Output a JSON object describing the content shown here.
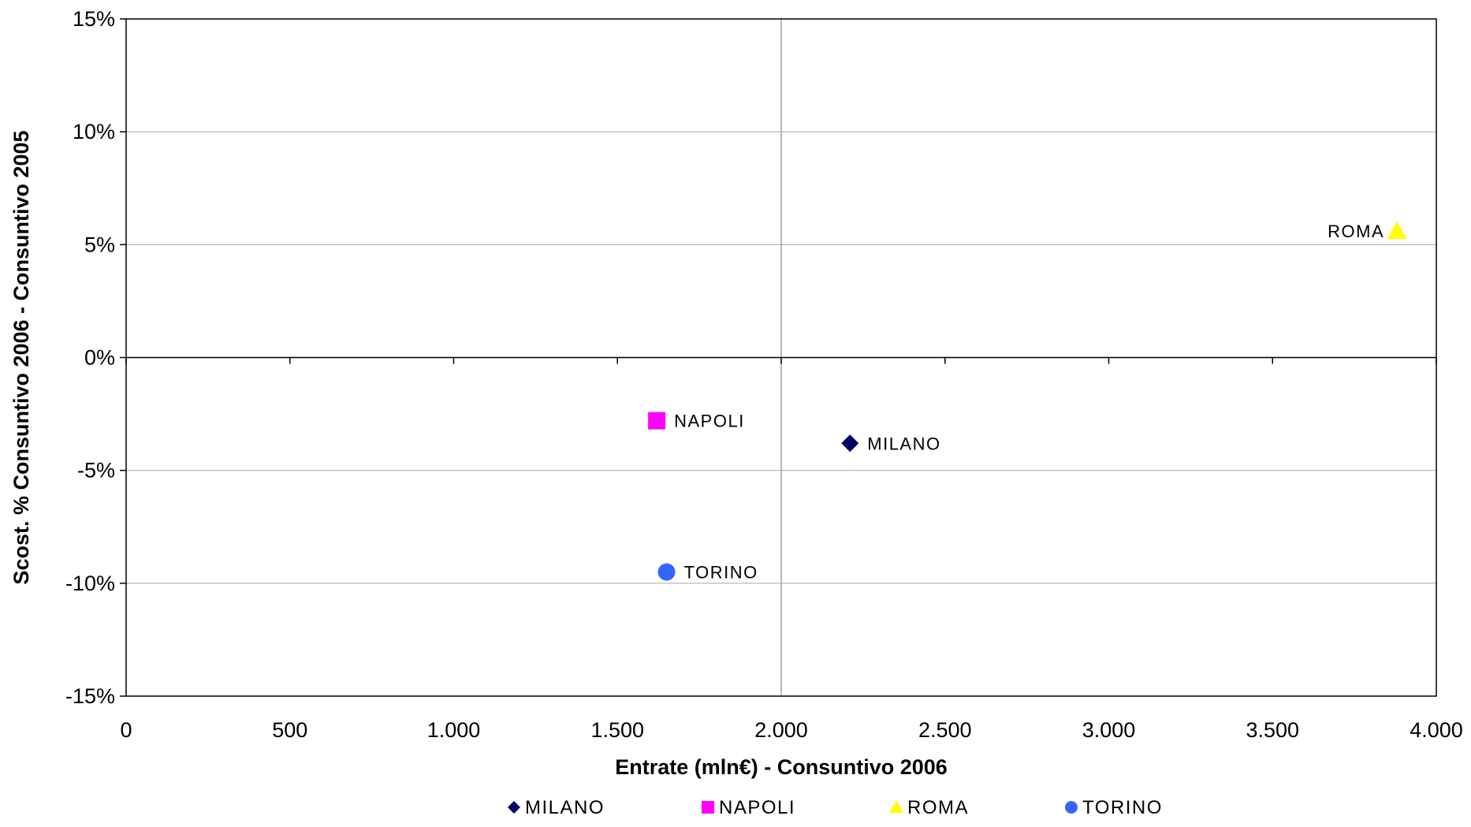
{
  "chart_data": {
    "type": "scatter",
    "xlabel": "Entrate (mln€) - Consuntivo 2006",
    "ylabel": "Scost. % Consuntivo 2006 - Consuntivo 2005",
    "xlim": [
      0,
      4000
    ],
    "ylim": [
      -15,
      15
    ],
    "x_ticks": [
      0,
      500,
      1000,
      1500,
      2000,
      2500,
      3000,
      3500,
      4000
    ],
    "x_tick_labels": [
      "0",
      "500",
      "1.000",
      "1.500",
      "2.000",
      "2.500",
      "3.000",
      "3.500",
      "4.000"
    ],
    "y_ticks": [
      -15,
      -10,
      -5,
      0,
      5,
      10,
      15
    ],
    "y_tick_labels": [
      "-15%",
      "-10%",
      "-5%",
      "0%",
      "5%",
      "10%",
      "15%"
    ],
    "grid": "horizontal",
    "reference_lines": {
      "x": 2000,
      "y": 0
    },
    "legend_position": "bottom",
    "series": [
      {
        "name": "MILANO",
        "x": 2210,
        "y": -3.8,
        "label": "MILANO",
        "marker": "diamond",
        "color": "#000066",
        "label_side": "right"
      },
      {
        "name": "NAPOLI",
        "x": 1620,
        "y": -2.8,
        "label": "NAPOLI",
        "marker": "square",
        "color": "#ff00ff",
        "label_side": "right"
      },
      {
        "name": "ROMA",
        "x": 3880,
        "y": 5.6,
        "label": "ROMA",
        "marker": "triangle",
        "color": "#ffff00",
        "label_side": "left"
      },
      {
        "name": "TORINO",
        "x": 1650,
        "y": -9.5,
        "label": "TORINO",
        "marker": "circle",
        "color": "#3366ff",
        "label_side": "right"
      }
    ]
  }
}
